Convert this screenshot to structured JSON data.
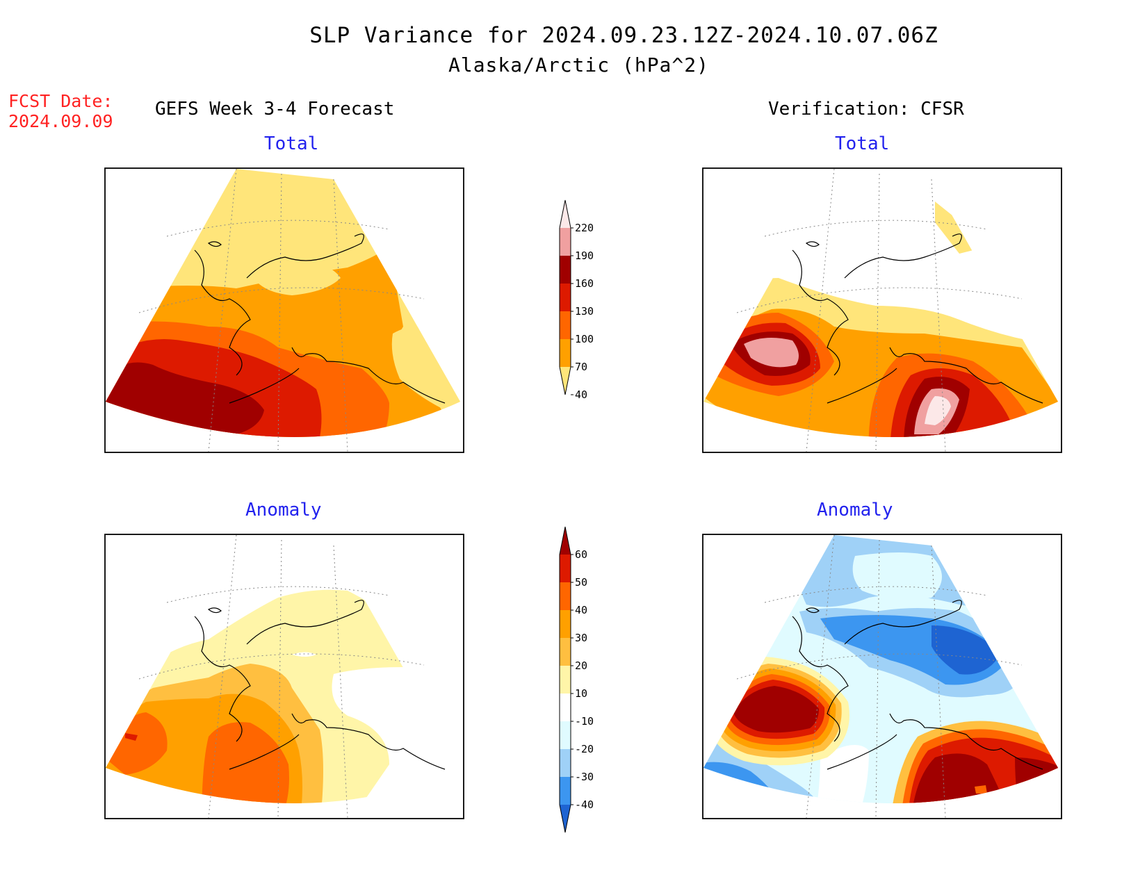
{
  "header": {
    "title": "SLP Variance for 2024.09.23.12Z-2024.10.07.06Z",
    "subtitle": "Alaska/Arctic (hPa^2)"
  },
  "fcst": {
    "label": "FCST Date:",
    "date": "2024.09.09"
  },
  "columns": {
    "left": "GEFS Week 3-4 Forecast",
    "right": "Verification: CFSR"
  },
  "panels": {
    "top_left": "Total",
    "top_right": "Total",
    "bottom_left": "Anomaly",
    "bottom_right": "Anomaly"
  },
  "colorbars": {
    "total": {
      "labels": [
        "220",
        "190",
        "160",
        "130",
        "100",
        "70",
        "40"
      ],
      "colors": [
        "#fce8e8",
        "#f0a0a0",
        "#a00000",
        "#dd1a00",
        "#ff6600",
        "#ffa000",
        "#ffe57a"
      ]
    },
    "anomaly": {
      "labels": [
        "60",
        "50",
        "40",
        "30",
        "20",
        "10",
        "-10",
        "-20",
        "-30",
        "-40"
      ],
      "colors": [
        "#a00000",
        "#dd1a00",
        "#ff6600",
        "#ffa000",
        "#ffbf40",
        "#fff5a8",
        "#ffffff",
        "#e0fbff",
        "#9fd1f7",
        "#3c96f0",
        "#1e64d2"
      ]
    }
  }
}
